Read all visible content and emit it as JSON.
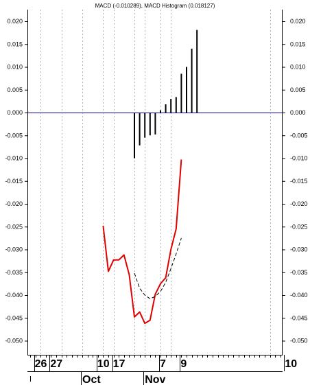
{
  "chart_data": {
    "type": "line",
    "title": "MACD (-0.010289), MACD Histogram (0.018127)",
    "ylim": [
      -0.053,
      0.024
    ],
    "xlim": [
      0,
      56
    ],
    "y_ticks": [
      "0.020",
      "0.015",
      "0.010",
      "0.005",
      "0.000",
      "-0.005",
      "-0.010",
      "-0.015",
      "-0.020",
      "-0.025",
      "-0.030",
      "-0.035",
      "-0.040",
      "-0.045",
      "-0.050"
    ],
    "y_tick_values": [
      0.02,
      0.015,
      0.01,
      0.005,
      0.0,
      -0.005,
      -0.01,
      -0.015,
      -0.02,
      -0.025,
      -0.03,
      -0.035,
      -0.04,
      -0.045,
      -0.05
    ],
    "x_day_labels": [
      {
        "label": "26",
        "x": 1
      },
      {
        "label": "27",
        "x": 4
      },
      {
        "label": "10",
        "x": 13
      },
      {
        "label": "17",
        "x": 16
      },
      {
        "label": "7",
        "x": 25
      },
      {
        "label": "9",
        "x": 29
      },
      {
        "label": "10",
        "x": 49
      }
    ],
    "x_month_labels": [
      {
        "label": "Oct",
        "x": 10
      },
      {
        "label": "Nov",
        "x": 22
      }
    ],
    "gridlines_x": [
      2,
      6,
      10,
      14,
      16,
      20,
      22,
      25,
      27,
      46
    ],
    "series": [
      {
        "kind": "line",
        "color": "#e00000",
        "x": [
          14,
          15,
          16,
          17,
          18,
          19,
          20,
          21,
          22,
          23,
          24,
          25,
          26,
          27,
          28,
          29
        ],
        "y": [
          -0.0248,
          -0.0348,
          -0.0323,
          -0.0323,
          -0.0312,
          -0.0355,
          -0.0448,
          -0.0437,
          -0.0462,
          -0.0455,
          -0.0398,
          -0.0375,
          -0.0362,
          -0.03,
          -0.0255,
          -0.0103
        ]
      },
      {
        "kind": "line",
        "color": "#000000",
        "dash": true,
        "x": [
          20,
          21,
          22,
          23,
          24,
          25,
          26,
          27,
          28,
          29
        ],
        "y": [
          -0.0352,
          -0.0385,
          -0.04,
          -0.0408,
          -0.0403,
          -0.0392,
          -0.0372,
          -0.0342,
          -0.031,
          -0.0275
        ]
      },
      {
        "kind": "histogram",
        "color": "#000000",
        "x": [
          20,
          21,
          22,
          23,
          24,
          25,
          26,
          27,
          28,
          29,
          30,
          31,
          32
        ],
        "y": [
          -0.01,
          -0.0072,
          -0.0055,
          -0.005,
          -0.0048,
          0.0005,
          0.0018,
          0.003,
          0.0034,
          0.0085,
          0.01,
          0.014,
          0.0181
        ]
      }
    ],
    "zero_line_color": "#0000a0"
  }
}
